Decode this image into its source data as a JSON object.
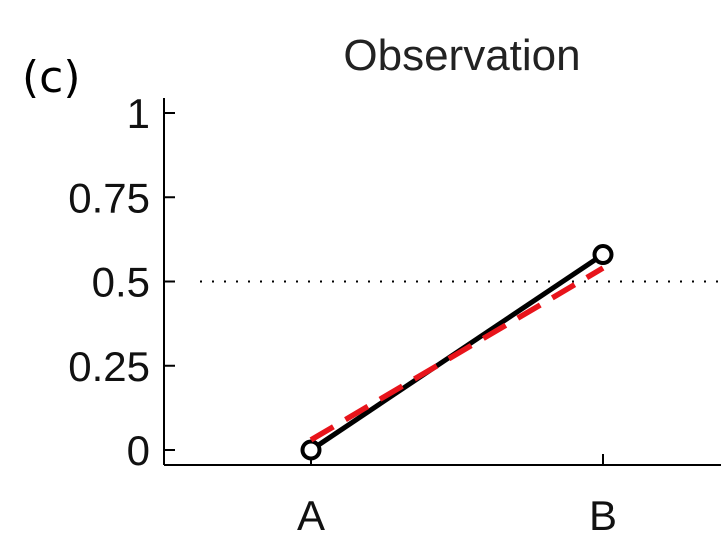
{
  "panel_label": "(c)",
  "chart_data": {
    "type": "line",
    "title": "Observation",
    "xlabel": "",
    "ylabel": "",
    "categories": [
      "A",
      "B"
    ],
    "ylim": [
      0,
      1
    ],
    "yticks": [
      "0",
      "0.25",
      "0.5",
      "0.75",
      "1"
    ],
    "reference_line": {
      "y": 0.5,
      "style": "dotted",
      "color": "#000000"
    },
    "series": [
      {
        "values": [
          0,
          0.58
        ],
        "color": "#000000",
        "style": "solid",
        "marker": "circle"
      },
      {
        "values": [
          0.03,
          0.54
        ],
        "color": "#e8141b",
        "style": "dashed",
        "marker": "none"
      }
    ],
    "grid": false,
    "legend": "none"
  }
}
